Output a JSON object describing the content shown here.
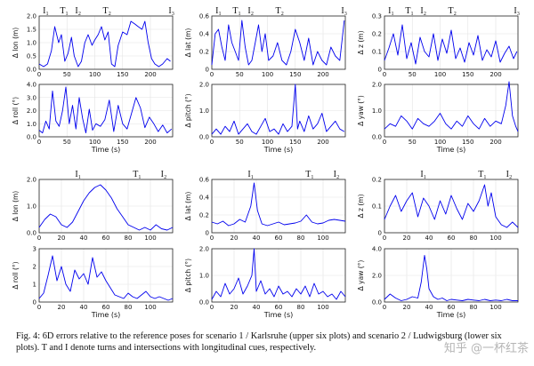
{
  "figure": {
    "caption": "Fig. 4: 6D errors relative to the reference poses for scenario 1 / Karlsruhe (upper six plots) and scenario 2 / Ludwigsburg (lower six plots). T and I denote turns and intersections with longitudinal cues, respectively.",
    "watermark": "知乎 @一杯红茶"
  },
  "chart_data": [
    {
      "id": "s1-lon",
      "type": "line",
      "ylabel": "Δ lon (m)",
      "xlabel": "",
      "xlim": [
        0,
        240
      ],
      "ylim": [
        0,
        2
      ],
      "xticks": [
        0,
        50,
        100,
        150,
        200
      ],
      "yticks": [
        "0.0",
        "0.5",
        "1.0",
        "1.5",
        "2.0"
      ],
      "events": [
        "I1",
        "T1",
        "I2",
        "T2",
        "I3"
      ],
      "color": "#0000ee",
      "series": [
        {
          "x": [
            0,
            8,
            15,
            22,
            28,
            35,
            40,
            46,
            52,
            58,
            63,
            70,
            76,
            82,
            88,
            95,
            100,
            106,
            112,
            118,
            124,
            130,
            136,
            142,
            150,
            158,
            165,
            172,
            178,
            185,
            190,
            196,
            202,
            208,
            215,
            222,
            230,
            236
          ],
          "y": [
            0.2,
            0.1,
            0.2,
            0.7,
            1.6,
            1.0,
            1.3,
            0.3,
            0.6,
            1.2,
            0.5,
            0.1,
            0.3,
            1.0,
            1.3,
            0.9,
            1.1,
            1.3,
            1.6,
            1.1,
            1.4,
            0.2,
            0.1,
            0.9,
            1.4,
            1.3,
            1.8,
            1.7,
            1.6,
            1.5,
            1.8,
            1.0,
            0.4,
            0.2,
            0.1,
            0.2,
            0.4,
            0.3
          ]
        }
      ]
    },
    {
      "id": "s1-lat",
      "type": "line",
      "ylabel": "Δ lat (m)",
      "xlabel": "",
      "xlim": [
        0,
        240
      ],
      "ylim": [
        0,
        0.6
      ],
      "xticks": [
        0,
        50,
        100,
        150,
        200
      ],
      "yticks": [
        "0",
        "0.2",
        "0.4",
        "0.6"
      ],
      "events": [
        "I1",
        "T1",
        "I2",
        "T2",
        "I3"
      ],
      "color": "#0000ee",
      "series": [
        {
          "x": [
            0,
            6,
            12,
            18,
            24,
            30,
            36,
            42,
            48,
            54,
            60,
            66,
            72,
            78,
            84,
            90,
            96,
            102,
            110,
            118,
            126,
            134,
            142,
            150,
            158,
            166,
            174,
            182,
            190,
            198,
            206,
            214,
            222,
            230,
            238
          ],
          "y": [
            0.05,
            0.4,
            0.45,
            0.25,
            0.1,
            0.5,
            0.3,
            0.2,
            0.1,
            0.55,
            0.25,
            0.05,
            0.1,
            0.3,
            0.5,
            0.2,
            0.4,
            0.1,
            0.15,
            0.3,
            0.1,
            0.05,
            0.2,
            0.45,
            0.3,
            0.1,
            0.35,
            0.05,
            0.2,
            0.1,
            0.05,
            0.25,
            0.15,
            0.1,
            0.55
          ]
        }
      ]
    },
    {
      "id": "s1-z",
      "type": "line",
      "ylabel": "Δ z (m)",
      "xlabel": "",
      "xlim": [
        0,
        240
      ],
      "ylim": [
        0,
        0.3
      ],
      "xticks": [
        0,
        50,
        100,
        150,
        200
      ],
      "yticks": [
        "0",
        "0.1",
        "0.2",
        "0.3"
      ],
      "events": [
        "I1",
        "T1",
        "I2",
        "T2",
        "I3"
      ],
      "color": "#0000ee",
      "series": [
        {
          "x": [
            0,
            8,
            16,
            24,
            32,
            40,
            48,
            56,
            64,
            72,
            80,
            88,
            96,
            104,
            112,
            120,
            128,
            136,
            144,
            152,
            160,
            168,
            176,
            184,
            192,
            200,
            208,
            216,
            224,
            232,
            238
          ],
          "y": [
            0.05,
            0.12,
            0.2,
            0.08,
            0.25,
            0.06,
            0.15,
            0.03,
            0.18,
            0.1,
            0.07,
            0.2,
            0.05,
            0.17,
            0.09,
            0.22,
            0.06,
            0.12,
            0.04,
            0.15,
            0.08,
            0.19,
            0.05,
            0.11,
            0.07,
            0.16,
            0.04,
            0.09,
            0.13,
            0.06,
            0.1
          ]
        }
      ]
    },
    {
      "id": "s1-roll",
      "type": "line",
      "ylabel": "Δ roll (°)",
      "xlabel": "Time (s)",
      "xlim": [
        0,
        240
      ],
      "ylim": [
        0,
        4
      ],
      "xticks": [
        0,
        50,
        100,
        150,
        200
      ],
      "yticks": [
        "0.0",
        "1.0",
        "2.0",
        "3.0",
        "4.0"
      ],
      "events": [],
      "color": "#0000ee",
      "series": [
        {
          "x": [
            0,
            6,
            12,
            18,
            24,
            30,
            36,
            42,
            48,
            54,
            60,
            66,
            72,
            78,
            84,
            90,
            96,
            102,
            110,
            118,
            126,
            134,
            142,
            150,
            158,
            166,
            174,
            182,
            190,
            198,
            206,
            214,
            222,
            230,
            238
          ],
          "y": [
            0.5,
            0.3,
            1.2,
            0.6,
            3.5,
            1.2,
            0.8,
            2.0,
            3.8,
            1.0,
            2.4,
            0.6,
            3.0,
            1.4,
            0.3,
            2.1,
            0.5,
            1.0,
            0.8,
            1.3,
            2.8,
            0.4,
            2.4,
            1.0,
            0.6,
            1.8,
            3.0,
            2.2,
            0.7,
            1.5,
            1.0,
            0.4,
            0.9,
            0.3,
            0.6
          ]
        }
      ]
    },
    {
      "id": "s1-pitch",
      "type": "line",
      "ylabel": "Δ pitch (°)",
      "xlabel": "Time (s)",
      "xlim": [
        0,
        240
      ],
      "ylim": [
        0,
        2
      ],
      "xticks": [
        0,
        50,
        100,
        150,
        200
      ],
      "yticks": [
        "0.0",
        "1.0",
        "2.0"
      ],
      "events": [],
      "color": "#0000ee",
      "series": [
        {
          "x": [
            0,
            8,
            16,
            24,
            32,
            40,
            48,
            56,
            64,
            72,
            80,
            88,
            96,
            104,
            112,
            120,
            128,
            136,
            144,
            150,
            154,
            158,
            166,
            174,
            182,
            190,
            198,
            206,
            214,
            222,
            230,
            238
          ],
          "y": [
            0.1,
            0.3,
            0.1,
            0.4,
            0.2,
            0.6,
            0.1,
            0.3,
            0.5,
            0.2,
            0.1,
            0.4,
            0.7,
            0.2,
            0.3,
            0.1,
            0.5,
            0.2,
            0.4,
            2.0,
            0.3,
            0.6,
            0.2,
            0.8,
            0.3,
            0.5,
            0.9,
            0.2,
            0.4,
            0.6,
            0.3,
            0.2
          ]
        }
      ]
    },
    {
      "id": "s1-yaw",
      "type": "line",
      "ylabel": "Δ yaw (°)",
      "xlabel": "Time (s)",
      "xlim": [
        0,
        240
      ],
      "ylim": [
        0,
        2
      ],
      "xticks": [
        0,
        50,
        100,
        150,
        200
      ],
      "yticks": [
        "0.0",
        "1.0",
        "2.0"
      ],
      "events": [],
      "color": "#0000ee",
      "series": [
        {
          "x": [
            0,
            10,
            20,
            30,
            40,
            50,
            60,
            70,
            80,
            90,
            100,
            110,
            120,
            130,
            140,
            150,
            160,
            170,
            180,
            190,
            200,
            210,
            218,
            224,
            230,
            236,
            240
          ],
          "y": [
            0.3,
            0.5,
            0.4,
            0.8,
            0.6,
            0.3,
            0.7,
            0.5,
            0.4,
            0.6,
            0.9,
            0.5,
            0.3,
            0.6,
            0.4,
            0.8,
            0.5,
            0.3,
            0.7,
            0.4,
            0.6,
            0.5,
            1.2,
            2.1,
            0.8,
            0.4,
            0.2
          ]
        }
      ]
    },
    {
      "id": "s2-lon",
      "type": "line",
      "ylabel": "Δ lon (m)",
      "xlabel": "",
      "xlim": [
        0,
        120
      ],
      "ylim": [
        0,
        2
      ],
      "xticks": [
        0,
        20,
        40,
        60,
        80,
        100
      ],
      "yticks": [
        "0.0",
        "1.0",
        "2.0"
      ],
      "events": [
        "I1",
        "T1",
        "I2"
      ],
      "color": "#0000ee",
      "series": [
        {
          "x": [
            0,
            5,
            10,
            15,
            20,
            25,
            30,
            35,
            40,
            45,
            50,
            55,
            60,
            65,
            70,
            75,
            80,
            85,
            90,
            95,
            100,
            105,
            110,
            115,
            120
          ],
          "y": [
            0.2,
            0.5,
            0.7,
            0.6,
            0.3,
            0.2,
            0.4,
            0.8,
            1.2,
            1.5,
            1.7,
            1.8,
            1.6,
            1.3,
            0.9,
            0.6,
            0.3,
            0.2,
            0.1,
            0.2,
            0.1,
            0.3,
            0.15,
            0.1,
            0.2
          ]
        }
      ]
    },
    {
      "id": "s2-lat",
      "type": "line",
      "ylabel": "Δ lat (m)",
      "xlabel": "",
      "xlim": [
        0,
        120
      ],
      "ylim": [
        0,
        0.6
      ],
      "xticks": [
        0,
        20,
        40,
        60,
        80,
        100
      ],
      "yticks": [
        "0",
        "0.2",
        "0.4",
        "0.6"
      ],
      "events": [
        "I1",
        "T1",
        "I2"
      ],
      "color": "#0000ee",
      "series": [
        {
          "x": [
            0,
            5,
            10,
            15,
            20,
            25,
            30,
            35,
            38,
            41,
            45,
            50,
            55,
            60,
            65,
            70,
            75,
            80,
            85,
            90,
            95,
            100,
            105,
            110,
            115,
            120
          ],
          "y": [
            0.12,
            0.1,
            0.13,
            0.08,
            0.1,
            0.15,
            0.12,
            0.3,
            0.56,
            0.25,
            0.1,
            0.08,
            0.1,
            0.12,
            0.09,
            0.1,
            0.11,
            0.13,
            0.2,
            0.12,
            0.1,
            0.11,
            0.14,
            0.15,
            0.14,
            0.13
          ]
        }
      ]
    },
    {
      "id": "s2-z",
      "type": "line",
      "ylabel": "Δ z (m)",
      "xlabel": "",
      "xlim": [
        0,
        120
      ],
      "ylim": [
        0,
        0.2
      ],
      "xticks": [
        0,
        20,
        40,
        60,
        80,
        100
      ],
      "yticks": [
        "0",
        "0.1",
        "0.2"
      ],
      "events": [
        "I1",
        "T1",
        "I2"
      ],
      "color": "#0000ee",
      "series": [
        {
          "x": [
            0,
            5,
            10,
            15,
            20,
            25,
            30,
            35,
            40,
            45,
            50,
            55,
            60,
            65,
            70,
            75,
            80,
            85,
            90,
            93,
            96,
            100,
            105,
            110,
            115,
            120
          ],
          "y": [
            0.05,
            0.1,
            0.14,
            0.08,
            0.12,
            0.15,
            0.06,
            0.13,
            0.1,
            0.05,
            0.12,
            0.07,
            0.14,
            0.09,
            0.05,
            0.11,
            0.08,
            0.12,
            0.18,
            0.1,
            0.15,
            0.06,
            0.03,
            0.02,
            0.04,
            0.02
          ]
        }
      ]
    },
    {
      "id": "s2-roll",
      "type": "line",
      "ylabel": "Δ roll (°)",
      "xlabel": "Time (s)",
      "xlim": [
        0,
        120
      ],
      "ylim": [
        0,
        3
      ],
      "xticks": [
        0,
        20,
        40,
        60,
        80,
        100
      ],
      "yticks": [
        "0",
        "1",
        "2",
        "3"
      ],
      "events": [],
      "color": "#0000ee",
      "series": [
        {
          "x": [
            0,
            4,
            8,
            12,
            16,
            20,
            24,
            28,
            32,
            36,
            40,
            44,
            48,
            52,
            56,
            60,
            64,
            68,
            72,
            76,
            80,
            84,
            88,
            92,
            96,
            100,
            104,
            108,
            112,
            116,
            120
          ],
          "y": [
            0.2,
            0.5,
            1.5,
            2.6,
            1.2,
            2.0,
            1.0,
            0.6,
            1.8,
            1.3,
            1.6,
            1.0,
            2.5,
            1.4,
            1.7,
            1.2,
            0.8,
            0.4,
            0.3,
            0.2,
            0.5,
            0.3,
            0.2,
            0.4,
            0.6,
            0.3,
            0.2,
            0.3,
            0.2,
            0.1,
            0.2
          ]
        }
      ]
    },
    {
      "id": "s2-pitch",
      "type": "line",
      "ylabel": "Δ pitch (°)",
      "xlabel": "Time (s)",
      "xlim": [
        0,
        120
      ],
      "ylim": [
        0,
        2
      ],
      "xticks": [
        0,
        20,
        40,
        60,
        80,
        100
      ],
      "yticks": [
        "0.0",
        "1.0",
        "2.0"
      ],
      "events": [],
      "color": "#0000ee",
      "series": [
        {
          "x": [
            0,
            4,
            8,
            12,
            16,
            20,
            24,
            28,
            32,
            36,
            38,
            40,
            44,
            48,
            52,
            56,
            60,
            64,
            68,
            72,
            76,
            80,
            84,
            88,
            92,
            96,
            100,
            104,
            108,
            112,
            116,
            120
          ],
          "y": [
            0.1,
            0.4,
            0.2,
            0.7,
            0.3,
            0.5,
            0.9,
            0.3,
            0.6,
            1.0,
            2.0,
            0.4,
            0.8,
            0.3,
            0.5,
            0.2,
            0.6,
            0.3,
            0.4,
            0.2,
            0.5,
            0.3,
            0.6,
            0.2,
            0.7,
            0.3,
            0.4,
            0.2,
            0.3,
            0.1,
            0.4,
            0.2
          ]
        }
      ]
    },
    {
      "id": "s2-yaw",
      "type": "line",
      "ylabel": "Δ yaw (°)",
      "xlabel": "Time (s)",
      "xlim": [
        0,
        120
      ],
      "ylim": [
        0,
        4
      ],
      "xticks": [
        0,
        20,
        40,
        60,
        80,
        100
      ],
      "yticks": [
        "0.0",
        "2.0",
        "4.0"
      ],
      "events": [],
      "color": "#0000ee",
      "series": [
        {
          "x": [
            0,
            5,
            10,
            15,
            20,
            25,
            30,
            33,
            36,
            38,
            40,
            44,
            48,
            52,
            56,
            60,
            65,
            70,
            75,
            80,
            85,
            90,
            95,
            100,
            105,
            110,
            115,
            120
          ],
          "y": [
            0.2,
            0.6,
            0.3,
            0.1,
            0.2,
            0.4,
            0.3,
            1.5,
            3.5,
            2.5,
            1.0,
            0.4,
            0.2,
            0.3,
            0.1,
            0.2,
            0.15,
            0.1,
            0.2,
            0.15,
            0.1,
            0.2,
            0.1,
            0.15,
            0.1,
            0.2,
            0.1,
            0.1
          ]
        }
      ]
    }
  ]
}
